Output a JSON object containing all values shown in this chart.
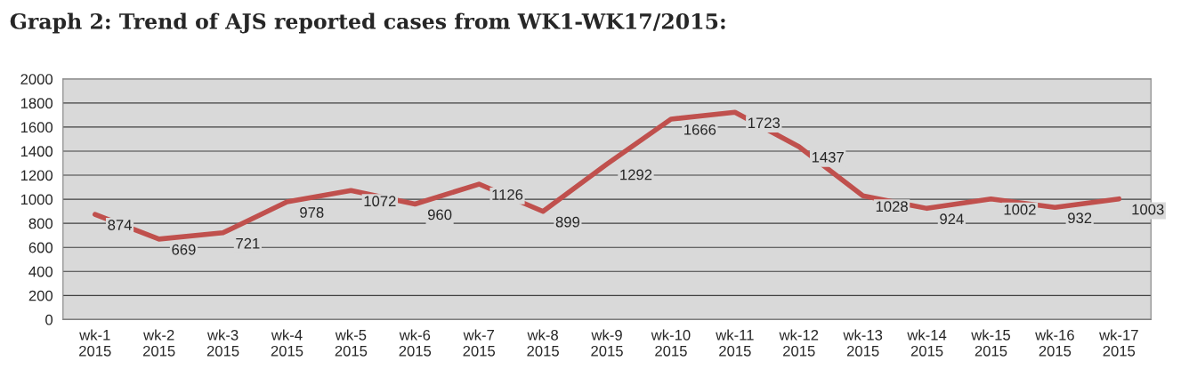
{
  "chart_data": {
    "type": "line",
    "title": "Graph 2: Trend of AJS reported cases from WK1-WK17/2015:",
    "categories": [
      "wk-1\n2015",
      "wk-2\n2015",
      "wk-3\n2015",
      "wk-4\n2015",
      "wk-5\n2015",
      "wk-6\n2015",
      "wk-7\n2015",
      "wk-8\n2015",
      "wk-9\n2015",
      "wk-10\n2015",
      "wk-11\n2015",
      "wk-12\n2015",
      "wk-13\n2015",
      "wk-14\n2015",
      "wk-15\n2015",
      "wk-16\n2015",
      "wk-17\n2015"
    ],
    "series": [
      {
        "color": "#c0504d",
        "values": [
          874,
          669,
          721,
          978,
          1072,
          960,
          1126,
          899,
          1292,
          1666,
          1723,
          1437,
          1028,
          924,
          1002,
          932,
          1003
        ]
      }
    ],
    "ylim": [
      0,
      2000
    ],
    "yticks": [
      0,
      200,
      400,
      600,
      800,
      1000,
      1200,
      1400,
      1600,
      1800,
      2000
    ],
    "grid": "y",
    "data_labels": true,
    "marker": "none",
    "line_style": "solid"
  }
}
